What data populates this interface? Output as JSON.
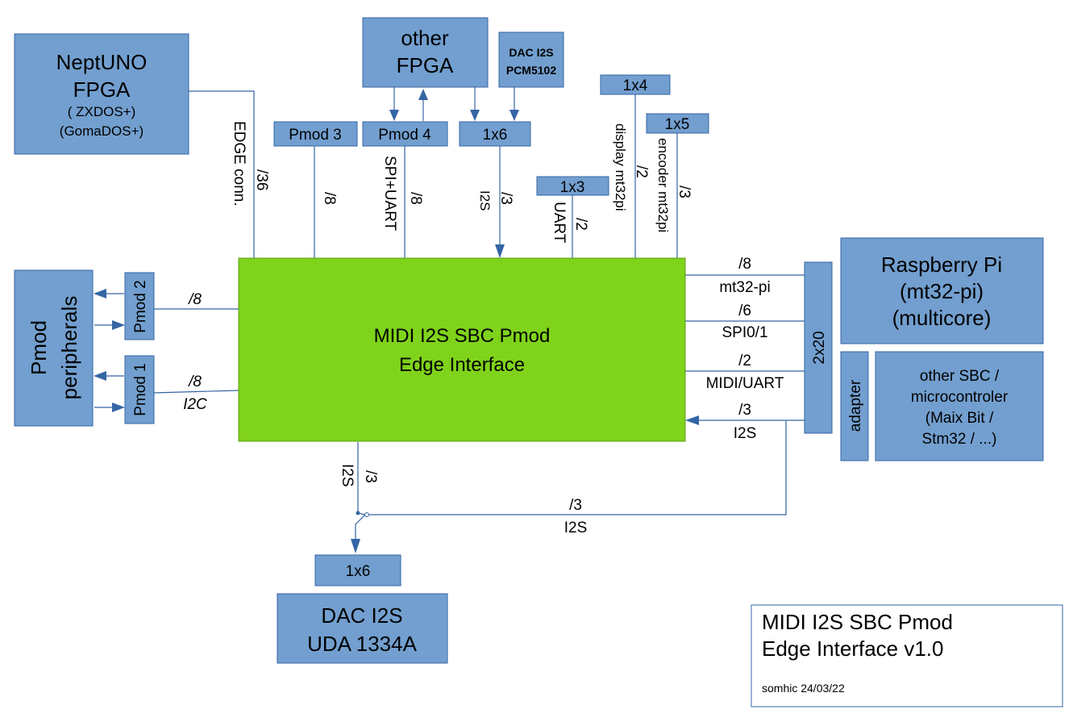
{
  "boxes": {
    "neptuno": {
      "l1": "NeptUNO",
      "l2": "FPGA",
      "l3": "( ZXDOS+)",
      "l4": "(GomaDOS+)"
    },
    "other_fpga": {
      "l1": "other",
      "l2": "FPGA"
    },
    "dac_pcm": {
      "l1": "DAC I2S",
      "l2": "PCM5102"
    },
    "pmod3": "Pmod 3",
    "pmod4": "Pmod 4",
    "h1x6_top": "1x6",
    "h1x3": "1x3",
    "h1x4": "1x4",
    "h1x5": "1x5",
    "core": {
      "l1": "MIDI I2S SBC Pmod",
      "l2": "Edge Interface"
    },
    "pmod_periph": {
      "l1": "Pmod",
      "l2": "peripherals"
    },
    "pmod2": "Pmod 2",
    "pmod1": "Pmod 1",
    "h2x20": "2x20",
    "rpi": {
      "l1": "Raspberry Pi",
      "l2": "(mt32-pi)",
      "l3": "(multicore)"
    },
    "adapter": "adapter",
    "other_sbc": {
      "l1": "other SBC /",
      "l2": "microcontroler",
      "l3": "(Maix Bit /",
      "l4": "Stm32 / ...)"
    },
    "h1x6_bottom": "1x6",
    "dac_uda": {
      "l1": "DAC I2S",
      "l2": "UDA 1334A"
    }
  },
  "labels": {
    "edge_count": "/36",
    "edge_name": "EDGE conn.",
    "pmod3_count": "/8",
    "pmod4_count": "/8",
    "pmod4_name": "SPI+UART",
    "i2s_top_count": "/3",
    "i2s_top_name": "I2S",
    "uart_count": "/2",
    "uart_name": "UART",
    "display_count": "/2",
    "display_name": "display mt32pi",
    "encoder_count": "/3",
    "encoder_name": "encoder mt32pi",
    "mt32_count": "/8",
    "mt32_name": "mt32-pi",
    "spi_count": "/6",
    "spi_name": "SPI0/1",
    "midi_count": "/2",
    "midi_name": "MIDI/UART",
    "i2s_right_count": "/3",
    "i2s_right_name": "I2S",
    "pmod2_count": "/8",
    "pmod1_count": "/8",
    "pmod1_name": "I2C",
    "i2s_down_count": "/3",
    "i2s_down_name": "I2S",
    "i2s_bottom_count": "/3",
    "i2s_bottom_name": "I2S"
  },
  "title_block": {
    "l1": "MIDI I2S SBC Pmod",
    "l2": "Edge Interface v1.0",
    "author": "somhic 24/03/22"
  }
}
